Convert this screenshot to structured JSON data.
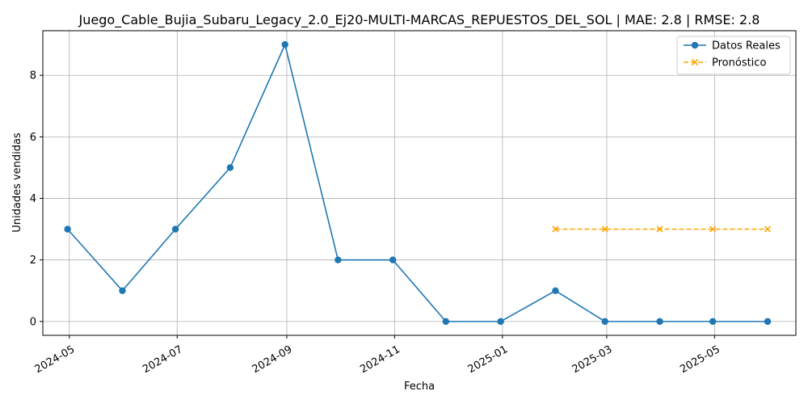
{
  "chart_data": {
    "type": "line",
    "title": "Juego_Cable_Bujia_Subaru_Legacy_2.0_Ej20-MULTI-MARCAS_REPUESTOS_DEL_SOL | MAE: 2.8 | RMSE: 2.8",
    "xlabel": "Fecha",
    "ylabel": "Unidades vendidas",
    "grid": true,
    "legend_position": "top-right",
    "xlim": [
      "2024-04-16",
      "2025-06-16"
    ],
    "ylim": [
      -0.45,
      9.45
    ],
    "x_ticks": [
      "2024-05-01",
      "2024-07-01",
      "2024-09-01",
      "2024-11-01",
      "2025-01-01",
      "2025-03-01",
      "2025-05-01"
    ],
    "x_tick_labels": [
      "2024-05",
      "2024-07",
      "2024-09",
      "2024-11",
      "2025-01",
      "2025-03",
      "2025-05"
    ],
    "y_ticks": [
      0,
      2,
      4,
      6,
      8
    ],
    "series": [
      {
        "name": "Datos Reales",
        "color": "#1f77b4",
        "style": "solid",
        "marker": "circle",
        "x": [
          "2024-04-30",
          "2024-05-31",
          "2024-06-30",
          "2024-07-31",
          "2024-08-31",
          "2024-09-30",
          "2024-10-31",
          "2024-11-30",
          "2024-12-31",
          "2025-01-31",
          "2025-02-28",
          "2025-03-31",
          "2025-04-30",
          "2025-05-31"
        ],
        "values": [
          3,
          1,
          3,
          5,
          9,
          2,
          2,
          0,
          0,
          1,
          0,
          0,
          0,
          0
        ]
      },
      {
        "name": "Pronóstico",
        "color": "#ffa500",
        "style": "dashed",
        "marker": "x",
        "x": [
          "2025-01-31",
          "2025-02-28",
          "2025-03-31",
          "2025-04-30",
          "2025-05-31"
        ],
        "values": [
          3,
          3,
          3,
          3,
          3
        ]
      }
    ]
  }
}
